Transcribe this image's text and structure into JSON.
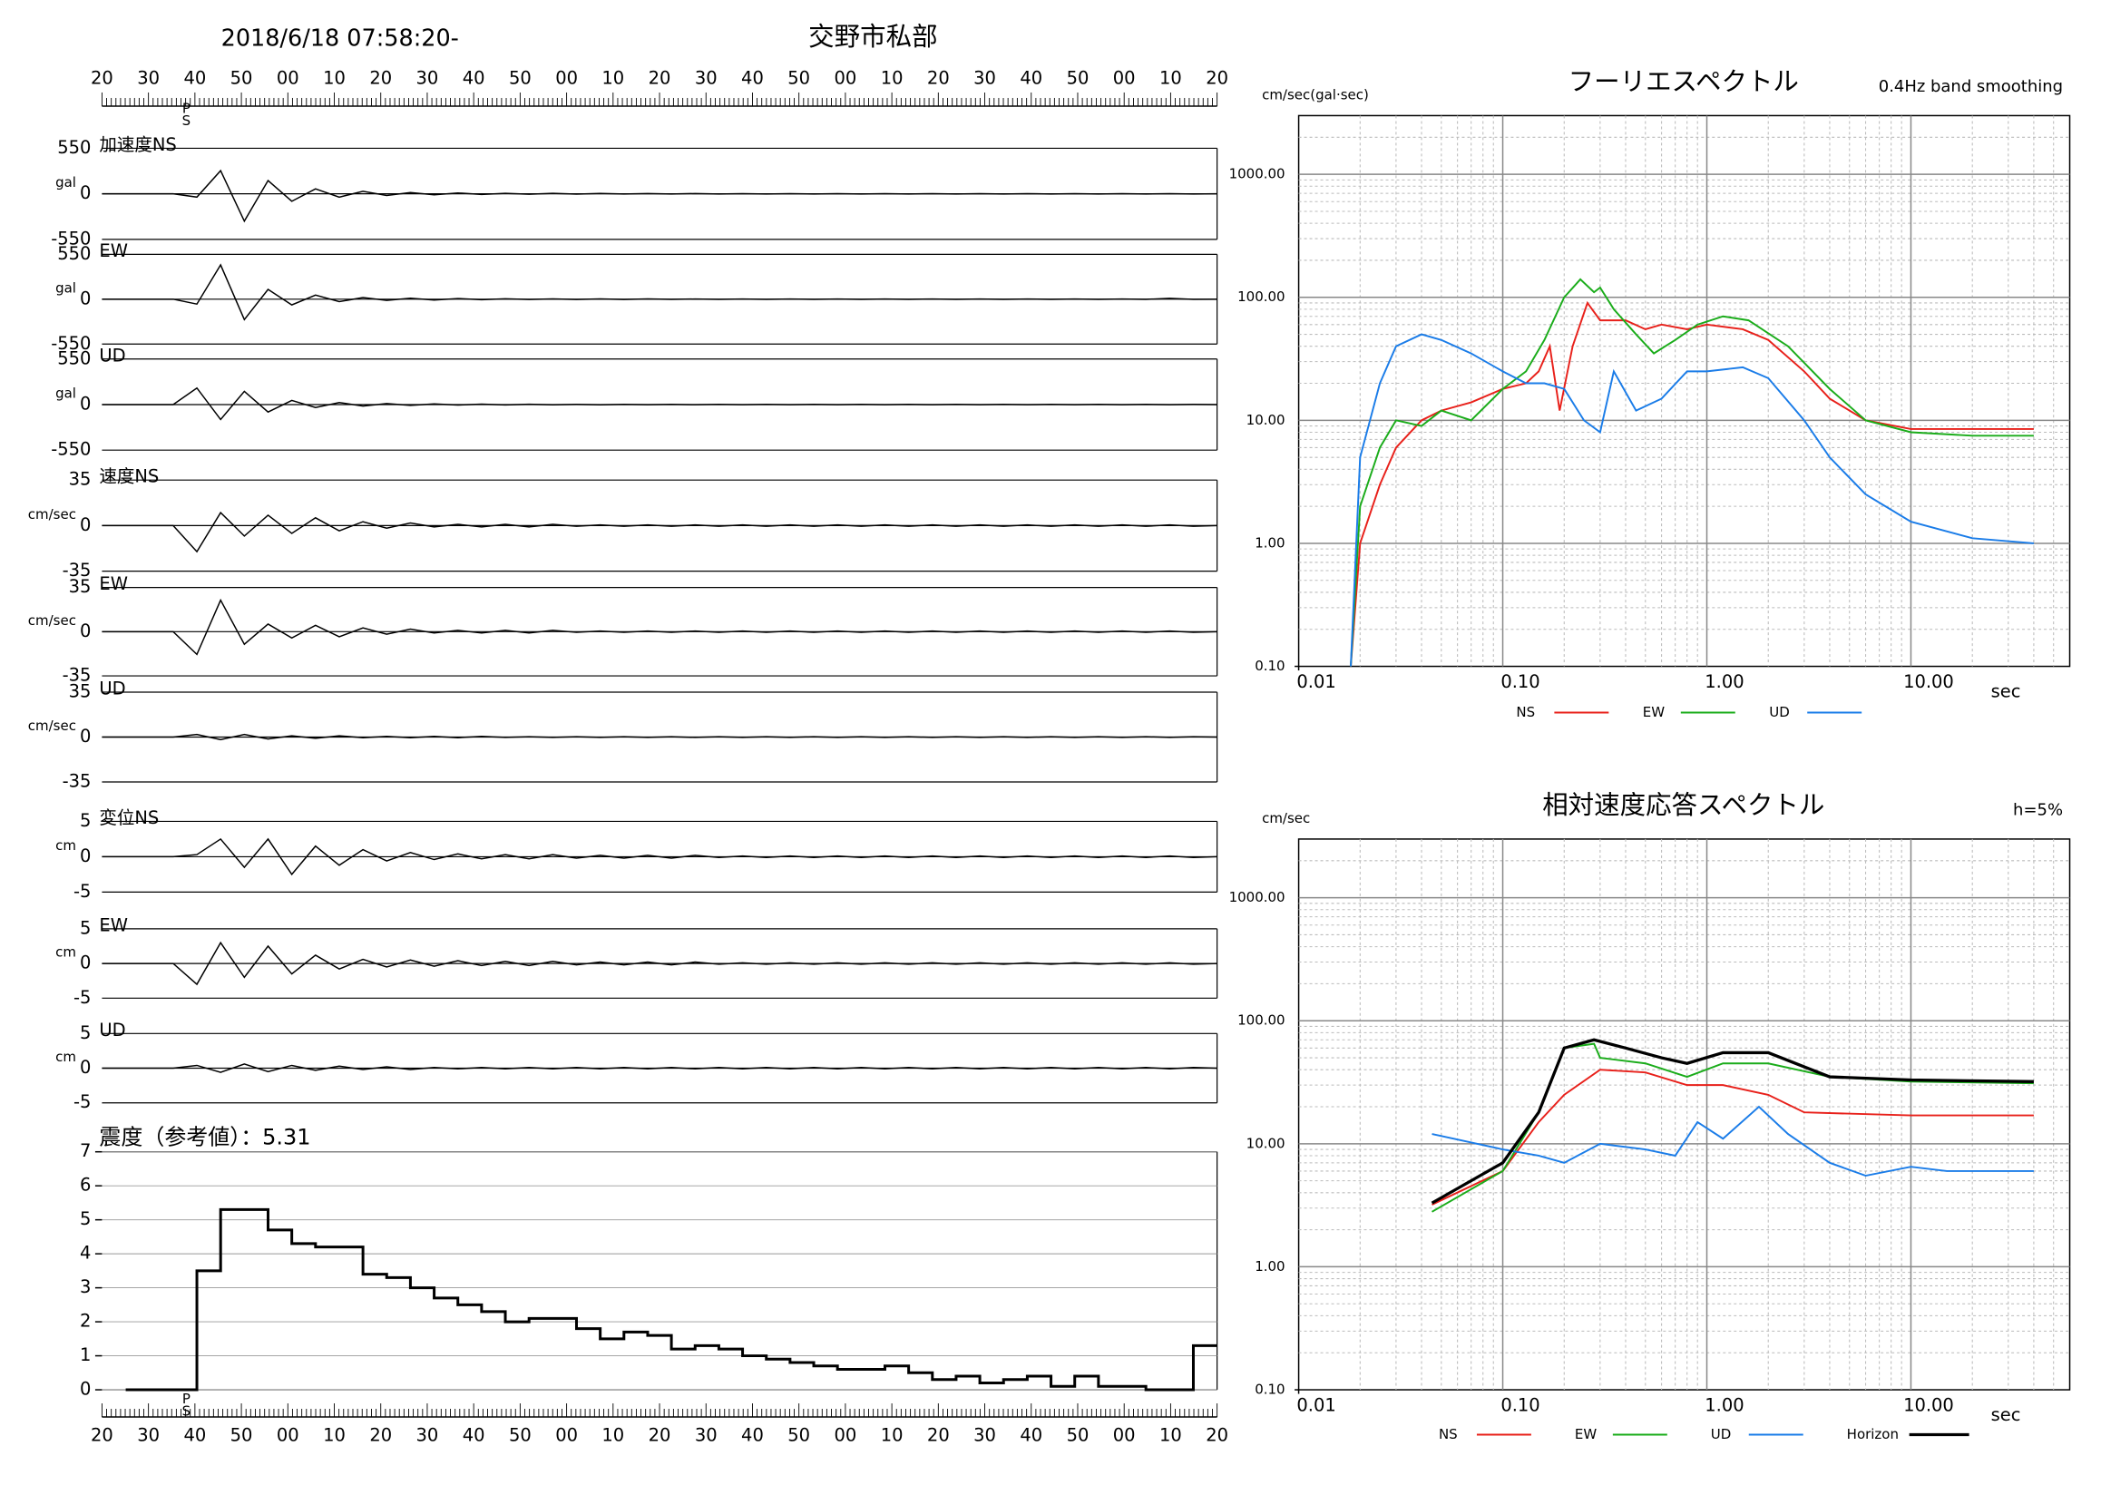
{
  "header": {
    "datetime": "2018/6/18 07:58:20-",
    "station": "交野市私部"
  },
  "time_labels": [
    "20",
    "30",
    "40",
    "50",
    "00",
    "10",
    "20",
    "30",
    "40",
    "50",
    "00",
    "10",
    "20",
    "30",
    "40",
    "50",
    "00",
    "10",
    "20",
    "30",
    "40",
    "50",
    "00",
    "10",
    "20"
  ],
  "phase_marks": [
    "P",
    "S"
  ],
  "chart_data": [
    {
      "type": "waveform",
      "title": "加速度NS",
      "unit": "gal",
      "ylim": [
        -550,
        550
      ],
      "yticks": [
        -550,
        0,
        550
      ],
      "values": [
        0,
        0,
        0,
        0,
        -40,
        280,
        -330,
        160,
        -90,
        60,
        -40,
        30,
        -20,
        15,
        -12,
        10,
        -8,
        6,
        -5,
        5,
        -4,
        4,
        -3,
        3,
        -3,
        3,
        -2,
        2,
        -2,
        2,
        -2,
        2,
        -2,
        2,
        -2,
        2,
        -2,
        2,
        -2,
        2,
        -2,
        2,
        -2,
        2,
        -2,
        2,
        -2,
        0
      ]
    },
    {
      "type": "waveform",
      "title": "EW",
      "unit": "gal",
      "ylim": [
        -550,
        550
      ],
      "yticks": [
        -550,
        0,
        550
      ],
      "values": [
        0,
        0,
        0,
        0,
        -60,
        420,
        -250,
        120,
        -70,
        50,
        -30,
        20,
        -15,
        12,
        -10,
        8,
        -6,
        5,
        -4,
        4,
        -3,
        3,
        -3,
        3,
        -2,
        2,
        -2,
        2,
        -2,
        2,
        -2,
        2,
        -2,
        2,
        -2,
        2,
        -2,
        2,
        -2,
        2,
        -2,
        2,
        -2,
        2,
        -2,
        10,
        -2,
        0
      ]
    },
    {
      "type": "waveform",
      "title": "UD",
      "unit": "gal",
      "ylim": [
        -550,
        550
      ],
      "yticks": [
        -550,
        0,
        550
      ],
      "values": [
        0,
        0,
        0,
        0,
        200,
        -180,
        160,
        -90,
        50,
        -35,
        25,
        -18,
        12,
        -10,
        8,
        -6,
        5,
        -4,
        4,
        -3,
        3,
        -3,
        2,
        -2,
        2,
        -2,
        2,
        -2,
        2,
        -2,
        2,
        -2,
        2,
        -2,
        2,
        -2,
        2,
        -2,
        2,
        -2,
        2,
        -2,
        2,
        -2,
        2,
        -2,
        2,
        0
      ]
    },
    {
      "type": "waveform",
      "title": "速度NS",
      "unit": "cm/sec",
      "ylim": [
        -35,
        35
      ],
      "yticks": [
        -35,
        0,
        35
      ],
      "values": [
        0,
        0,
        0,
        0,
        -20,
        10,
        -8,
        8,
        -6,
        6,
        -4,
        3,
        -2,
        2,
        -1,
        1,
        -1,
        1,
        -1,
        1,
        -0.5,
        0.5,
        -0.5,
        0.5,
        -0.5,
        0.5,
        -0.5,
        0.5,
        -0.5,
        0.5,
        -0.5,
        0.5,
        -0.5,
        0.5,
        -0.5,
        0.5,
        -0.5,
        0.5,
        -0.5,
        0.5,
        -0.5,
        0.5,
        -0.5,
        0.5,
        -0.5,
        0.5,
        -0.5,
        0
      ]
    },
    {
      "type": "waveform",
      "title": "EW",
      "unit": "cm/sec",
      "ylim": [
        -35,
        35
      ],
      "yticks": [
        -35,
        0,
        35
      ],
      "values": [
        0,
        0,
        0,
        0,
        -18,
        25,
        -10,
        6,
        -5,
        5,
        -4,
        3,
        -2,
        2,
        -1,
        1,
        -1,
        1,
        -1,
        1,
        -0.5,
        0.5,
        -0.5,
        0.5,
        -0.5,
        0.5,
        -0.5,
        0.5,
        -0.5,
        0.5,
        -0.5,
        0.5,
        -0.5,
        0.5,
        -0.5,
        0.5,
        -0.5,
        0.5,
        -0.5,
        0.5,
        -0.5,
        0.5,
        -0.5,
        0.5,
        -0.5,
        0.5,
        -0.5,
        0
      ]
    },
    {
      "type": "waveform",
      "title": "UD",
      "unit": "cm/sec",
      "ylim": [
        -35,
        35
      ],
      "yticks": [
        -35,
        0,
        35
      ],
      "values": [
        0,
        0,
        0,
        0,
        2,
        -2,
        2,
        -1.5,
        1,
        -1,
        1,
        -0.5,
        0.5,
        -0.5,
        0.5,
        -0.5,
        0.5,
        -0.3,
        0.3,
        -0.3,
        0.3,
        -0.3,
        0.3,
        -0.3,
        0.3,
        -0.3,
        0.3,
        -0.3,
        0.3,
        -0.3,
        0.3,
        -0.3,
        0.3,
        -0.3,
        0.3,
        -0.3,
        0.3,
        -0.3,
        0.3,
        -0.3,
        0.3,
        -0.3,
        0.3,
        -0.3,
        0.3,
        -0.3,
        0.3,
        0
      ]
    },
    {
      "type": "waveform",
      "title": "変位NS",
      "unit": "cm",
      "ylim": [
        -5,
        5
      ],
      "yticks": [
        -5,
        0,
        5
      ],
      "values": [
        0,
        0,
        0,
        0,
        0.3,
        2.5,
        -1.5,
        2.5,
        -2.5,
        1.5,
        -1.2,
        1,
        -0.6,
        0.6,
        -0.4,
        0.4,
        -0.3,
        0.3,
        -0.3,
        0.3,
        -0.2,
        0.2,
        -0.2,
        0.2,
        -0.2,
        0.2,
        -0.1,
        0.1,
        -0.1,
        0.1,
        -0.1,
        0.1,
        -0.1,
        0.1,
        -0.1,
        0.1,
        -0.1,
        0.1,
        -0.1,
        0.1,
        -0.1,
        0.1,
        -0.1,
        0.1,
        -0.1,
        0.1,
        -0.1,
        0
      ]
    },
    {
      "type": "waveform",
      "title": "EW",
      "unit": "cm",
      "ylim": [
        -5,
        5
      ],
      "yticks": [
        -5,
        0,
        5
      ],
      "values": [
        0,
        0,
        0,
        0,
        -3,
        3,
        -2,
        2.5,
        -1.5,
        1.2,
        -0.8,
        0.6,
        -0.5,
        0.5,
        -0.4,
        0.4,
        -0.3,
        0.3,
        -0.3,
        0.3,
        -0.2,
        0.2,
        -0.2,
        0.2,
        -0.2,
        0.2,
        -0.1,
        0.1,
        -0.1,
        0.1,
        -0.1,
        0.1,
        -0.1,
        0.1,
        -0.1,
        0.1,
        -0.1,
        0.1,
        -0.1,
        0.1,
        -0.1,
        0.1,
        -0.1,
        0.1,
        -0.1,
        0.1,
        -0.1,
        0
      ]
    },
    {
      "type": "waveform",
      "title": "UD",
      "unit": "cm",
      "ylim": [
        -5,
        5
      ],
      "yticks": [
        -5,
        0,
        5
      ],
      "values": [
        0,
        0,
        0,
        0,
        0.4,
        -0.6,
        0.6,
        -0.5,
        0.4,
        -0.3,
        0.3,
        -0.2,
        0.2,
        -0.2,
        0.1,
        -0.1,
        0.1,
        -0.1,
        0.1,
        -0.1,
        0.1,
        -0.1,
        0.1,
        -0.1,
        0.1,
        -0.1,
        0.1,
        -0.1,
        0.1,
        -0.1,
        0.1,
        -0.1,
        0.1,
        -0.1,
        0.1,
        -0.1,
        0.1,
        -0.1,
        0.1,
        -0.1,
        0.1,
        -0.1,
        0.1,
        -0.1,
        0.1,
        -0.1,
        0.1,
        0
      ]
    },
    {
      "type": "step",
      "title": "震度（参考値）：5.31",
      "ylim": [
        0,
        7
      ],
      "yticks": [
        0,
        1,
        2,
        3,
        4,
        5,
        6,
        7
      ],
      "values": [
        null,
        0,
        0,
        0,
        3.5,
        5.3,
        5.3,
        4.7,
        4.3,
        4.2,
        4.2,
        3.4,
        3.3,
        3.0,
        2.7,
        2.5,
        2.3,
        2.0,
        2.1,
        2.1,
        1.8,
        1.5,
        1.7,
        1.6,
        1.2,
        1.3,
        1.2,
        1.0,
        0.9,
        0.8,
        0.7,
        0.6,
        0.6,
        0.7,
        0.5,
        0.3,
        0.4,
        0.2,
        0.3,
        0.4,
        0.1,
        0.4,
        0.1,
        0.1,
        0,
        0,
        1.3,
        1.3
      ]
    },
    {
      "type": "loglog",
      "title": "フーリエスペクトル",
      "subtitle": "0.4Hz band smoothing",
      "y_unit": "cm/sec(gal·sec)",
      "x_unit": "sec",
      "xlim": [
        0.01,
        60
      ],
      "ylim": [
        0.1,
        3000
      ],
      "log_scale": true,
      "grid": true,
      "xticks": [
        0.01,
        {
          "value": 0.1,
          "label": "0.10"
        },
        {
          "value": 1,
          "label": "1.00"
        },
        {
          "value": 10,
          "label": "10.00"
        }
      ],
      "yticks": [
        {
          "value": 0.1,
          "label": "0.10"
        },
        {
          "value": 1,
          "label": "1.00"
        },
        {
          "value": 10,
          "label": "10.00"
        },
        {
          "value": 100,
          "label": "100.00"
        },
        {
          "value": 1000,
          "label": "1000.00"
        }
      ],
      "series": [
        {
          "name": "NS",
          "color": "#e8201a",
          "x": [
            0.018,
            0.02,
            0.025,
            0.03,
            0.04,
            0.05,
            0.07,
            0.1,
            0.13,
            0.15,
            0.17,
            0.19,
            0.22,
            0.26,
            0.3,
            0.4,
            0.5,
            0.6,
            0.8,
            1.0,
            1.5,
            2,
            3,
            4,
            6,
            10,
            20,
            40
          ],
          "values": [
            0.1,
            1,
            3,
            6,
            10,
            12,
            14,
            18,
            20,
            25,
            40,
            12,
            40,
            90,
            65,
            65,
            55,
            60,
            55,
            60,
            55,
            45,
            25,
            15,
            10,
            8.5,
            8.5,
            8.5
          ]
        },
        {
          "name": "EW",
          "color": "#1aac1a",
          "x": [
            0.018,
            0.02,
            0.025,
            0.03,
            0.04,
            0.05,
            0.07,
            0.1,
            0.13,
            0.16,
            0.2,
            0.24,
            0.28,
            0.3,
            0.35,
            0.45,
            0.55,
            0.7,
            0.9,
            1.2,
            1.6,
            2.5,
            4,
            6,
            10,
            20,
            40
          ],
          "values": [
            0.1,
            2,
            6,
            10,
            9,
            12,
            10,
            18,
            25,
            45,
            100,
            140,
            110,
            120,
            80,
            50,
            35,
            45,
            60,
            70,
            65,
            40,
            18,
            10,
            8,
            7.5,
            7.5
          ]
        },
        {
          "name": "UD",
          "color": "#1a7ce8",
          "x": [
            0.018,
            0.02,
            0.025,
            0.03,
            0.04,
            0.05,
            0.07,
            0.1,
            0.13,
            0.16,
            0.2,
            0.25,
            0.3,
            0.35,
            0.45,
            0.6,
            0.8,
            1.0,
            1.5,
            2,
            3,
            4,
            6,
            10,
            20,
            40
          ],
          "values": [
            0.1,
            5,
            20,
            40,
            50,
            45,
            35,
            25,
            20,
            20,
            18,
            10,
            8,
            25,
            12,
            15,
            25,
            25,
            27,
            22,
            10,
            5,
            2.5,
            1.5,
            1.1,
            1
          ]
        }
      ]
    },
    {
      "type": "loglog",
      "title": "相対速度応答スペクトル",
      "subtitle": "h=5%",
      "y_unit": "cm/sec",
      "x_unit": "sec",
      "xlim": [
        0.01,
        60
      ],
      "ylim": [
        0.1,
        3000
      ],
      "log_scale": true,
      "grid": true,
      "xticks": [
        0.01,
        {
          "value": 0.1,
          "label": "0.10"
        },
        {
          "value": 1,
          "label": "1.00"
        },
        {
          "value": 10,
          "label": "10.00"
        }
      ],
      "yticks": [
        {
          "value": 0.1,
          "label": "0.10"
        },
        {
          "value": 1,
          "label": "1.00"
        },
        {
          "value": 10,
          "label": "10.00"
        },
        {
          "value": 100,
          "label": "100.00"
        },
        {
          "value": 1000,
          "label": "1000.00"
        }
      ],
      "series": [
        {
          "name": "NS",
          "color": "#e8201a",
          "x": [
            0.045,
            0.1,
            0.15,
            0.2,
            0.3,
            0.5,
            0.8,
            1.2,
            2,
            3,
            10,
            40
          ],
          "values": [
            3.2,
            6,
            15,
            25,
            40,
            38,
            30,
            30,
            25,
            18,
            17,
            17
          ]
        },
        {
          "name": "EW",
          "color": "#1aac1a",
          "x": [
            0.045,
            0.1,
            0.15,
            0.2,
            0.28,
            0.3,
            0.5,
            0.8,
            1.2,
            2,
            4,
            10,
            40
          ],
          "values": [
            2.8,
            6,
            18,
            60,
            65,
            50,
            45,
            35,
            45,
            45,
            35,
            32,
            31
          ]
        },
        {
          "name": "UD",
          "color": "#1a7ce8",
          "x": [
            0.045,
            0.1,
            0.15,
            0.2,
            0.3,
            0.5,
            0.7,
            0.9,
            1.2,
            1.8,
            2.5,
            4,
            6,
            10,
            15,
            40
          ],
          "values": [
            12,
            9,
            8,
            7,
            10,
            9,
            8,
            15,
            11,
            20,
            12,
            7,
            5.5,
            6.5,
            6,
            6
          ]
        },
        {
          "name": "Horizon",
          "color": "#000000",
          "x": [
            0.045,
            0.1,
            0.15,
            0.2,
            0.28,
            0.4,
            0.6,
            0.8,
            1.2,
            2,
            4,
            10,
            40
          ],
          "values": [
            3.3,
            7,
            18,
            60,
            70,
            60,
            50,
            45,
            55,
            55,
            35,
            33,
            32
          ]
        }
      ]
    }
  ]
}
